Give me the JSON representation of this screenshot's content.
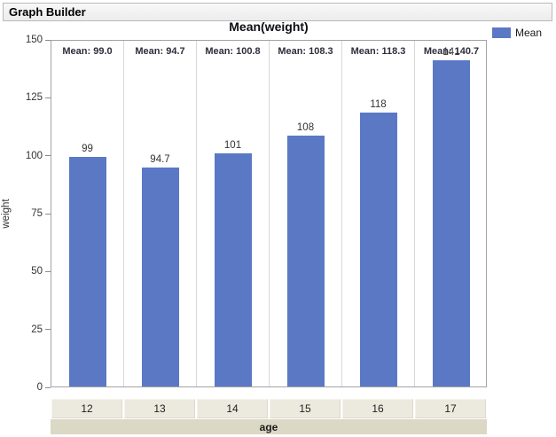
{
  "window": {
    "title": "Graph Builder"
  },
  "chart_data": {
    "type": "bar",
    "title": "Mean(weight)",
    "categories": [
      "12",
      "13",
      "14",
      "15",
      "16",
      "17"
    ],
    "values": [
      99.0,
      94.7,
      100.8,
      108.3,
      118.3,
      140.7
    ],
    "bar_labels": [
      "99",
      "94.7",
      "101",
      "108",
      "118",
      "141"
    ],
    "panel_captions": [
      "Mean: 99.0",
      "Mean: 94.7",
      "Mean: 100.8",
      "Mean: 108.3",
      "Mean: 118.3",
      "Mean: 140.7"
    ],
    "xlabel": "age",
    "ylabel": "weight",
    "ylim": [
      0,
      150
    ],
    "yticks": [
      0,
      25,
      50,
      75,
      100,
      125,
      150
    ],
    "grid": false,
    "legend": {
      "position": "top-right",
      "entries": [
        {
          "label": "Mean",
          "color": "#5b78c5"
        }
      ]
    },
    "bar_color": "#5b78c5"
  },
  "colors": {
    "bar": "#5b78c5",
    "category_box_bg": "#eceadf",
    "axis_title_band_bg": "#dbd8c5",
    "plot_border": "#a3a3a3",
    "header_border": "#b9b9b9"
  }
}
